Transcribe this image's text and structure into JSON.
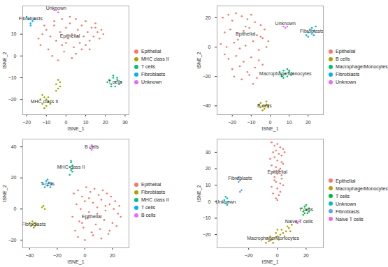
{
  "chart_data": [
    {
      "type": "scatter",
      "x_label": "tSNE_1",
      "y_label": "tSNE_2",
      "xlim": [
        -22,
        32
      ],
      "ylim": [
        -27,
        23
      ],
      "xticks": [
        -20,
        -10,
        0,
        10,
        20,
        30
      ],
      "yticks": [
        -20,
        -10,
        0,
        10
      ],
      "grid": false,
      "legend": "right",
      "series": [
        {
          "name": "Epithelial",
          "color": "#F8766D",
          "x": [
            -14,
            -12,
            -13,
            -10,
            -8,
            -9,
            -6,
            -5,
            -7,
            -3,
            -2,
            -4,
            0,
            1,
            -1,
            2,
            3,
            4,
            5,
            6,
            7,
            8,
            9,
            10,
            11,
            12,
            13,
            14,
            15,
            16,
            17,
            18,
            19,
            3,
            5,
            8,
            -11,
            -6,
            0,
            6,
            12,
            2,
            -2,
            10,
            15
          ],
          "y": [
            8,
            10,
            5,
            12,
            9,
            3,
            14,
            7,
            0,
            11,
            5,
            -2,
            13,
            8,
            2,
            15,
            10,
            4,
            17,
            12,
            6,
            14,
            9,
            16,
            11,
            7,
            13,
            9,
            15,
            11,
            8,
            12,
            10,
            -1,
            1,
            3,
            14,
            16,
            6,
            9,
            3,
            18,
            17,
            5,
            13
          ]
        },
        {
          "name": "MHC class II",
          "color": "#A3A500",
          "x": [
            -13,
            -12,
            -11,
            -10,
            -9,
            -12,
            -10,
            -8,
            -11,
            -9,
            -5,
            -4,
            -3,
            -5,
            -3,
            -4
          ],
          "y": [
            -20,
            -22,
            -19,
            -23,
            -21,
            -18,
            -20,
            -22,
            -24,
            -19,
            -13,
            -15,
            -14,
            -16,
            -12,
            -11
          ]
        },
        {
          "name": "T cells",
          "color": "#00BF7D",
          "x": [
            22,
            23,
            24,
            25,
            26,
            27,
            23,
            25,
            26,
            24,
            21,
            28
          ],
          "y": [
            -11,
            -13,
            -10,
            -12,
            -11,
            -13,
            -14,
            -14,
            -10,
            -9,
            -12,
            -12
          ]
        },
        {
          "name": "Fibroblasts",
          "color": "#00B0F6",
          "x": [
            -19,
            -18,
            -17,
            -20,
            -18,
            -16
          ],
          "y": [
            17,
            15,
            16,
            18,
            14,
            17
          ]
        },
        {
          "name": "Unknown",
          "color": "#E76BF3",
          "x": [
            -6,
            -5,
            -4
          ],
          "y": [
            21,
            21,
            20
          ]
        }
      ],
      "annotations": [
        {
          "text": "Epithelial",
          "x": 2,
          "y": 9
        },
        {
          "text": "MHC class II",
          "x": -11,
          "y": -21
        },
        {
          "text": "T cells",
          "x": 25,
          "y": -12
        },
        {
          "text": "Fibroblasts",
          "x": -18,
          "y": 17
        },
        {
          "text": "Unknown",
          "x": -5,
          "y": 22
        }
      ]
    },
    {
      "type": "scatter",
      "x_label": "tSNE_1",
      "y_label": "tSNE_2",
      "xlim": [
        -28,
        28
      ],
      "ylim": [
        -46,
        28
      ],
      "xticks": [
        -20,
        -10,
        0,
        10,
        20
      ],
      "yticks": [
        -40,
        -20,
        0,
        20
      ],
      "grid": false,
      "legend": "right",
      "series": [
        {
          "name": "Epithelial",
          "color": "#F8766D",
          "x": [
            -25,
            -22,
            -20,
            -18,
            -15,
            -12,
            -10,
            -8,
            -5,
            -3,
            -24,
            -21,
            -17,
            -14,
            -11,
            -7,
            -4,
            -1,
            -26,
            -23,
            -19,
            -16,
            -13,
            -9,
            -6,
            -2,
            -22,
            -18,
            -14,
            -10,
            -6,
            -20,
            -16,
            -12,
            -8,
            -4,
            -24,
            -19,
            -15,
            -11,
            -7,
            -17,
            -13,
            -9,
            -5
          ],
          "y": [
            20,
            22,
            18,
            23,
            21,
            19,
            22,
            17,
            15,
            12,
            10,
            12,
            9,
            11,
            13,
            8,
            6,
            4,
            2,
            0,
            3,
            -1,
            1,
            4,
            -2,
            0,
            -8,
            -6,
            -10,
            -7,
            -9,
            -15,
            -13,
            -17,
            -14,
            -12,
            -5,
            -20,
            -22,
            -19,
            -21,
            5,
            14,
            -25,
            7
          ]
        },
        {
          "name": "B cells",
          "color": "#A3A500",
          "x": [
            -5,
            -4,
            -3,
            -2,
            -1,
            -4,
            -2,
            -3,
            -5,
            -1,
            -6
          ],
          "y": [
            -38,
            -40,
            -42,
            -39,
            -41,
            -43,
            -37,
            -40,
            -41,
            -40,
            -39
          ]
        },
        {
          "name": "Macrophage/Monocytes",
          "color": "#00BF7D",
          "x": [
            5,
            6,
            7,
            8,
            9,
            10,
            11,
            7,
            9,
            12,
            6,
            10
          ],
          "y": [
            -17,
            -19,
            -16,
            -18,
            -20,
            -17,
            -19,
            -21,
            -15,
            -18,
            -20,
            -16
          ]
        },
        {
          "name": "Fibroblasts",
          "color": "#00B0F6",
          "x": [
            19,
            20,
            21,
            22,
            23,
            24,
            20,
            22,
            23
          ],
          "y": [
            8,
            10,
            12,
            9,
            11,
            14,
            7,
            13,
            8
          ]
        },
        {
          "name": "Unknown",
          "color": "#E76BF3",
          "x": [
            7,
            8,
            9
          ],
          "y": [
            14,
            13,
            14
          ]
        }
      ],
      "annotations": [
        {
          "text": "Epithelial",
          "x": -13,
          "y": 9
        },
        {
          "text": "Unknown",
          "x": 8,
          "y": 16
        },
        {
          "text": "Fibroblasts",
          "x": 22,
          "y": 11
        },
        {
          "text": "Macrophage/Monocytes",
          "x": 8,
          "y": -18
        },
        {
          "text": "B cells",
          "x": -3,
          "y": -40
        }
      ]
    },
    {
      "type": "scatter",
      "x_label": "tSNE_1",
      "y_label": "tSNE_2",
      "xlim": [
        -45,
        32
      ],
      "ylim": [
        -25,
        45
      ],
      "xticks": [
        -40,
        -20,
        0,
        20
      ],
      "yticks": [
        -20,
        0,
        20,
        40
      ],
      "grid": false,
      "legend": "right",
      "series": [
        {
          "name": "Epithelial",
          "color": "#F8766D",
          "x": [
            -8,
            -5,
            -2,
            1,
            4,
            7,
            10,
            13,
            16,
            19,
            22,
            25,
            -6,
            -3,
            0,
            3,
            6,
            9,
            12,
            15,
            18,
            21,
            24,
            -9,
            -4,
            2,
            8,
            14,
            20,
            26,
            -7,
            -1,
            5,
            11,
            17,
            23,
            -5,
            0,
            6,
            12,
            18,
            3,
            9,
            15,
            -2
          ],
          "y": [
            10,
            12,
            8,
            14,
            11,
            13,
            9,
            12,
            10,
            8,
            5,
            2,
            3,
            0,
            5,
            -2,
            4,
            1,
            6,
            -1,
            3,
            0,
            -3,
            -5,
            -8,
            -6,
            -10,
            -7,
            -9,
            -5,
            -14,
            -12,
            -15,
            -13,
            -16,
            -11,
            -18,
            -20,
            -17,
            -19,
            -14,
            7,
            -3,
            2,
            -9
          ]
        },
        {
          "name": "Fibroblasts",
          "color": "#A3A500",
          "x": [
            -40,
            -39,
            -38,
            -37,
            -36,
            -38,
            -36,
            -35,
            -31,
            -30,
            -29
          ],
          "y": [
            -9,
            -11,
            -10,
            -12,
            -9,
            -8,
            -11,
            -10,
            1,
            2,
            0
          ]
        },
        {
          "name": "MHC class II",
          "color": "#00BF7D",
          "x": [
            -11,
            -10,
            -9,
            -10,
            -9,
            -11,
            -10,
            -9
          ],
          "y": [
            22,
            25,
            28,
            30,
            24,
            27,
            31,
            26
          ]
        },
        {
          "name": "T cells",
          "color": "#00B0F6",
          "x": [
            -30,
            -28,
            -27,
            -26,
            -25,
            -29,
            -27,
            -24
          ],
          "y": [
            16,
            18,
            15,
            17,
            14,
            14,
            19,
            16
          ]
        },
        {
          "name": "B cells",
          "color": "#E76BF3",
          "x": [
            4,
            5,
            6,
            5
          ],
          "y": [
            39,
            41,
            40,
            38
          ]
        }
      ],
      "annotations": [
        {
          "text": "Epithelial",
          "x": 5,
          "y": -5
        },
        {
          "text": "Fibroblasts",
          "x": -37,
          "y": -10
        },
        {
          "text": "MHC class II",
          "x": -10,
          "y": 27
        },
        {
          "text": "T cells",
          "x": -27,
          "y": 16
        },
        {
          "text": "B cells",
          "x": 5,
          "y": 40
        }
      ]
    },
    {
      "type": "scatter",
      "x_label": "tSNE_1",
      "y_label": "tSNE_2",
      "xlim": [
        -42,
        32
      ],
      "ylim": [
        -28,
        38
      ],
      "xticks": [
        -20,
        0,
        20
      ],
      "yticks": [
        -20,
        -10,
        0,
        10,
        20,
        30
      ],
      "grid": false,
      "legend": "right",
      "series": [
        {
          "name": "Epithelial",
          "color": "#F8766D",
          "x": [
            -4,
            -2,
            0,
            2,
            4,
            -3,
            -1,
            1,
            3,
            5,
            -5,
            -2,
            0,
            3,
            -4,
            -1,
            2,
            4,
            -3,
            0,
            1,
            -2,
            3,
            -1,
            2,
            -4,
            0,
            4,
            -3,
            1,
            -1,
            2,
            0,
            -2,
            3
          ],
          "y": [
            36,
            34,
            35,
            33,
            32,
            30,
            31,
            29,
            28,
            30,
            26,
            27,
            25,
            24,
            22,
            21,
            20,
            23,
            18,
            17,
            19,
            15,
            14,
            12,
            11,
            9,
            8,
            10,
            5,
            4,
            2,
            6,
            1,
            13,
            16
          ]
        },
        {
          "name": "Macrophage/Monocytes",
          "color": "#B79F00",
          "x": [
            -8,
            -6,
            -4,
            -2,
            0,
            2,
            4,
            6,
            8,
            10,
            -5,
            -1,
            3,
            7,
            -3,
            1,
            5,
            9,
            -7,
            0
          ],
          "y": [
            -25,
            -24,
            -23,
            -22,
            -21,
            -20,
            -19,
            -18,
            -16,
            -14,
            -21,
            -19,
            -17,
            -15,
            -25,
            -23,
            -21,
            -18,
            -22,
            -17
          ]
        },
        {
          "name": "T cells",
          "color": "#00BA38",
          "x": [
            17,
            18,
            19,
            20,
            21,
            22,
            18,
            20,
            22,
            19
          ],
          "y": [
            -4,
            -6,
            -3,
            -5,
            -7,
            -4,
            -8,
            -2,
            -6,
            -7
          ]
        },
        {
          "name": "Unknown",
          "color": "#00BFC4",
          "x": [
            -37,
            -36,
            -35,
            -34,
            -36,
            -35
          ],
          "y": [
            1,
            -1,
            2,
            0,
            3,
            -2
          ]
        },
        {
          "name": "Fibroblasts",
          "color": "#619CFF",
          "x": [
            -28,
            -27,
            -26,
            -27,
            -25,
            -26
          ],
          "y": [
            14,
            15,
            13,
            12,
            7,
            6
          ]
        },
        {
          "name": "Naive T cells",
          "color": "#F564E3",
          "x": [
            13,
            14,
            15
          ],
          "y": [
            -12,
            -13,
            -12
          ]
        }
      ],
      "annotations": [
        {
          "text": "Fibroblasts",
          "x": -26,
          "y": 14
        },
        {
          "text": "Unknown",
          "x": -36,
          "y": 0
        },
        {
          "text": "Epithelial",
          "x": 0,
          "y": 18
        },
        {
          "text": "Macrophage/Monocytes",
          "x": -3,
          "y": -22
        },
        {
          "text": "T cells",
          "x": 20,
          "y": -5
        },
        {
          "text": "Naive T cells",
          "x": 15,
          "y": -12
        }
      ]
    }
  ]
}
